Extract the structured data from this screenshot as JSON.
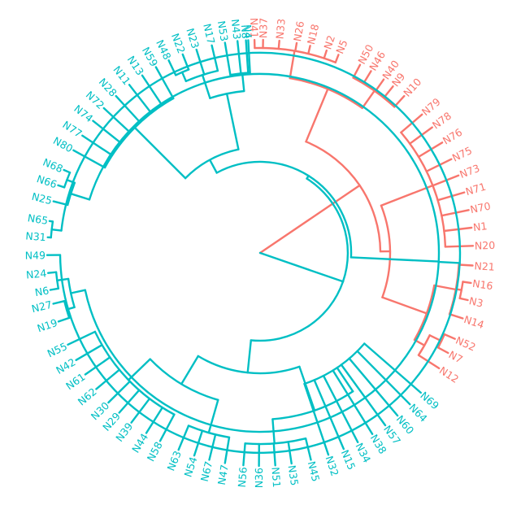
{
  "diagram": {
    "type": "circular-dendrogram",
    "colors": {
      "red": "#F8766D",
      "teal": "#00BFC4"
    },
    "leaves": [
      {
        "label": "N41",
        "cluster": "red",
        "angle": 91.5
      },
      {
        "label": "N37",
        "cluster": "red",
        "angle": 89.2
      },
      {
        "label": "N33",
        "cluster": "red",
        "angle": 84.8
      },
      {
        "label": "N26",
        "cluster": "red",
        "angle": 80.1
      },
      {
        "label": "N18",
        "cluster": "red",
        "angle": 76.4
      },
      {
        "label": "N2",
        "cluster": "red",
        "angle": 71.8
      },
      {
        "label": "N5",
        "cluster": "red",
        "angle": 68.4
      },
      {
        "label": "N50",
        "cluster": "red",
        "angle": 62.0
      },
      {
        "label": "N46",
        "cluster": "red",
        "angle": 58.6
      },
      {
        "label": "N40",
        "cluster": "red",
        "angle": 54.5
      },
      {
        "label": "N9",
        "cluster": "red",
        "angle": 51.4
      },
      {
        "label": "N10",
        "cluster": "red",
        "angle": 47.4
      },
      {
        "label": "N79",
        "cluster": "red",
        "angle": 40.5
      },
      {
        "label": "N78",
        "cluster": "red",
        "angle": 36.1
      },
      {
        "label": "N76",
        "cluster": "red",
        "angle": 31.2
      },
      {
        "label": "N75",
        "cluster": "red",
        "angle": 26.1
      },
      {
        "label": "N73",
        "cluster": "red",
        "angle": 21.3
      },
      {
        "label": "N71",
        "cluster": "red",
        "angle": 16.5
      },
      {
        "label": "N70",
        "cluster": "red",
        "angle": 11.6
      },
      {
        "label": "N1",
        "cluster": "red",
        "angle": 6.8
      },
      {
        "label": "N20",
        "cluster": "red",
        "angle": 1.9
      },
      {
        "label": "N21",
        "cluster": "red",
        "angle": -3.4
      },
      {
        "label": "N16",
        "cluster": "red",
        "angle": -8.1
      },
      {
        "label": "N3",
        "cluster": "red",
        "angle": -12.8
      },
      {
        "label": "N14",
        "cluster": "red",
        "angle": -17.9
      },
      {
        "label": "N52",
        "cluster": "red",
        "angle": -23.8
      },
      {
        "label": "N7",
        "cluster": "red",
        "angle": -28.0
      },
      {
        "label": "N12",
        "cluster": "red",
        "angle": -32.8
      },
      {
        "label": "N69",
        "cluster": "teal",
        "angle": -41.0
      },
      {
        "label": "N64",
        "cluster": "teal",
        "angle": -45.3
      },
      {
        "label": "N60",
        "cluster": "teal",
        "angle": -49.8
      },
      {
        "label": "N57",
        "cluster": "teal",
        "angle": -54.0
      },
      {
        "label": "N38",
        "cluster": "teal",
        "angle": -58.2
      },
      {
        "label": "N34",
        "cluster": "teal",
        "angle": -62.7
      },
      {
        "label": "N15",
        "cluster": "teal",
        "angle": -66.9
      },
      {
        "label": "N32",
        "cluster": "teal",
        "angle": -71.3
      },
      {
        "label": "N45",
        "cluster": "teal",
        "angle": -76.2
      },
      {
        "label": "N35",
        "cluster": "teal",
        "angle": -81.5
      },
      {
        "label": "N51",
        "cluster": "teal",
        "angle": -85.9
      },
      {
        "label": "N36",
        "cluster": "teal",
        "angle": -90.3
      },
      {
        "label": "N56",
        "cluster": "teal",
        "angle": -94.5
      },
      {
        "label": "N47",
        "cluster": "teal",
        "angle": -99.5
      },
      {
        "label": "N67",
        "cluster": "teal",
        "angle": -103.8
      },
      {
        "label": "N54",
        "cluster": "teal",
        "angle": -108.0
      },
      {
        "label": "N63",
        "cluster": "teal",
        "angle": -112.5
      },
      {
        "label": "N58",
        "cluster": "teal",
        "angle": -118.0
      },
      {
        "label": "N44",
        "cluster": "teal",
        "angle": -122.3
      },
      {
        "label": "N39",
        "cluster": "teal",
        "angle": -127.2
      },
      {
        "label": "N29",
        "cluster": "teal",
        "angle": -131.4
      },
      {
        "label": "N30",
        "cluster": "teal",
        "angle": -135.4
      },
      {
        "label": "N62",
        "cluster": "teal",
        "angle": -140.3
      },
      {
        "label": "N61",
        "cluster": "teal",
        "angle": -145.2
      },
      {
        "label": "N42",
        "cluster": "teal",
        "angle": -149.8
      },
      {
        "label": "N55",
        "cluster": "teal",
        "angle": -154.5
      },
      {
        "label": "N19",
        "cluster": "teal",
        "angle": -161.2
      },
      {
        "label": "N27",
        "cluster": "teal",
        "angle": -166.2
      },
      {
        "label": "N6",
        "cluster": "teal",
        "angle": -170.0
      },
      {
        "label": "N24",
        "cluster": "teal",
        "angle": -174.6
      },
      {
        "label": "N49",
        "cluster": "teal",
        "angle": -179.4
      },
      {
        "label": "N31",
        "cluster": "teal",
        "angle": 175.8
      },
      {
        "label": "N65",
        "cluster": "teal",
        "angle": 171.4
      },
      {
        "label": "N25",
        "cluster": "teal",
        "angle": 166.0
      },
      {
        "label": "N66",
        "cluster": "teal",
        "angle": 161.5
      },
      {
        "label": "N68",
        "cluster": "teal",
        "angle": 157.1
      },
      {
        "label": "N80",
        "cluster": "teal",
        "angle": 151.2
      },
      {
        "label": "N77",
        "cluster": "teal",
        "angle": 146.6
      },
      {
        "label": "N74",
        "cluster": "teal",
        "angle": 141.7
      },
      {
        "label": "N72",
        "cluster": "teal",
        "angle": 137.2
      },
      {
        "label": "N28",
        "cluster": "teal",
        "angle": 132.6
      },
      {
        "label": "N11",
        "cluster": "teal",
        "angle": 127.9
      },
      {
        "label": "N13",
        "cluster": "teal",
        "angle": 123.6
      },
      {
        "label": "N59",
        "cluster": "teal",
        "angle": 119.3
      },
      {
        "label": "N48",
        "cluster": "teal",
        "angle": 115.4
      },
      {
        "label": "N22",
        "cluster": "teal",
        "angle": 111.3
      },
      {
        "label": "N23",
        "cluster": "teal",
        "angle": 107.4
      },
      {
        "label": "N17",
        "cluster": "teal",
        "angle": 103.1
      },
      {
        "label": "N53",
        "cluster": "teal",
        "angle": 99.5
      },
      {
        "label": "N43",
        "cluster": "teal",
        "angle": 96.1
      },
      {
        "label": "N4",
        "cluster": "teal",
        "angle": 93.2
      },
      {
        "label": "N8",
        "cluster": "teal",
        "angle": 93.8
      }
    ]
  }
}
